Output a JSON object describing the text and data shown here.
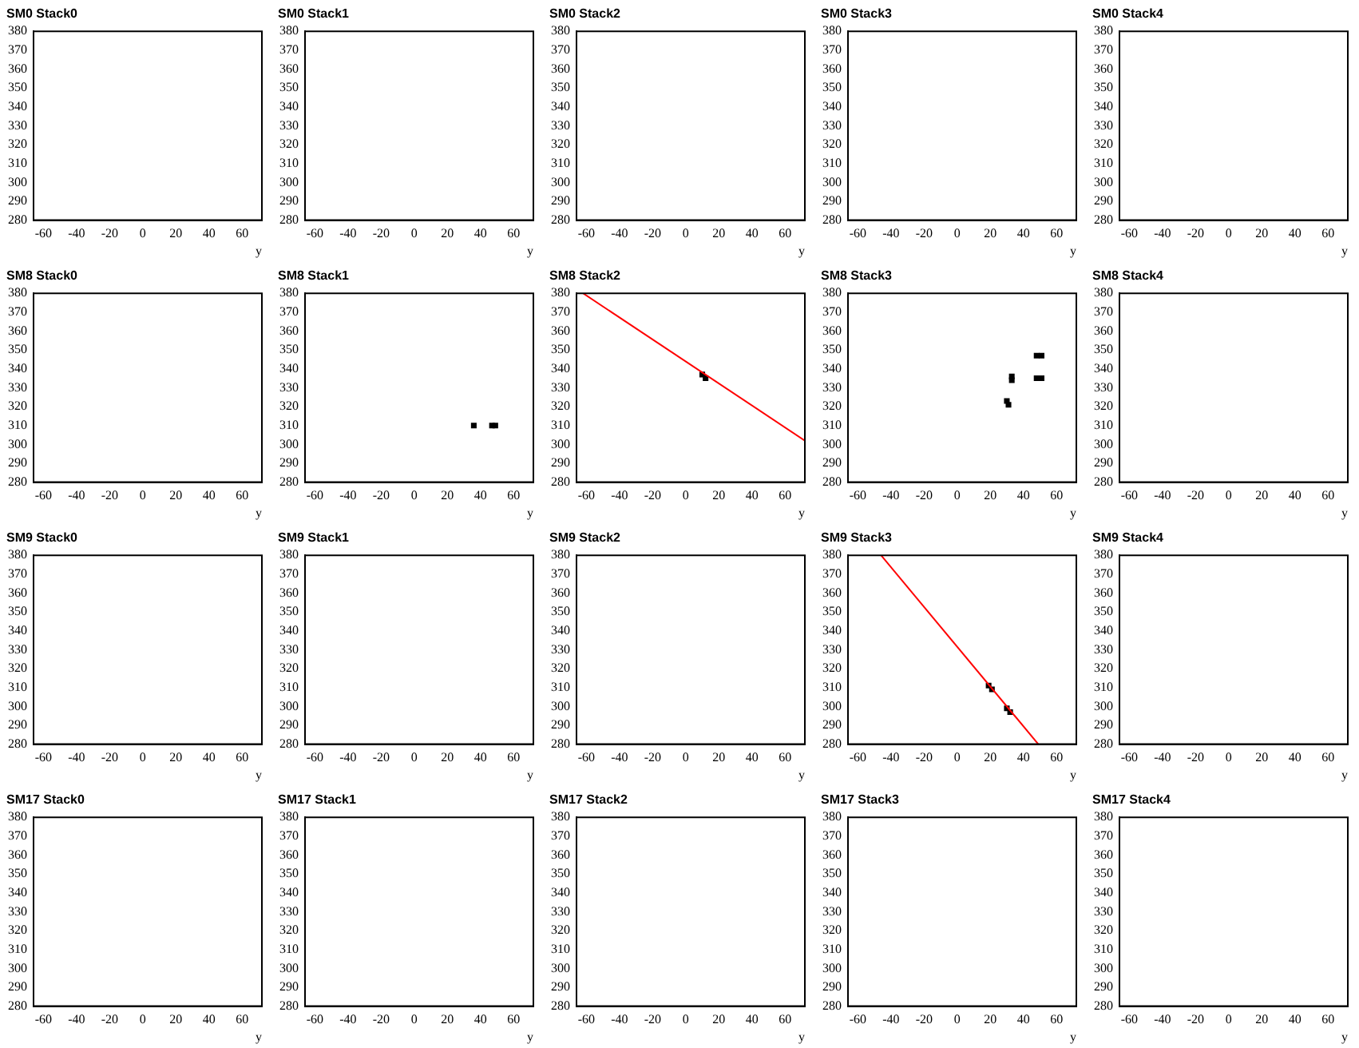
{
  "chart_data": [
    {
      "type": "scatter",
      "title": "SM0 Stack0",
      "xlabel": "y",
      "xlim": [
        -66,
        72
      ],
      "xticks": [
        -60,
        -40,
        -20,
        0,
        20,
        40,
        60
      ],
      "ylim": [
        280,
        380
      ],
      "yticks": [
        280,
        290,
        300,
        310,
        320,
        330,
        340,
        350,
        360,
        370,
        380
      ]
    },
    {
      "type": "scatter",
      "title": "SM0 Stack1",
      "xlabel": "y",
      "xlim": [
        -66,
        72
      ],
      "xticks": [
        -60,
        -40,
        -20,
        0,
        20,
        40,
        60
      ],
      "ylim": [
        280,
        380
      ],
      "yticks": [
        280,
        290,
        300,
        310,
        320,
        330,
        340,
        350,
        360,
        370,
        380
      ]
    },
    {
      "type": "scatter",
      "title": "SM0 Stack2",
      "xlabel": "y",
      "xlim": [
        -66,
        72
      ],
      "xticks": [
        -60,
        -40,
        -20,
        0,
        20,
        40,
        60
      ],
      "ylim": [
        280,
        380
      ],
      "yticks": [
        280,
        290,
        300,
        310,
        320,
        330,
        340,
        350,
        360,
        370,
        380
      ]
    },
    {
      "type": "scatter",
      "title": "SM0 Stack3",
      "xlabel": "y",
      "xlim": [
        -66,
        72
      ],
      "xticks": [
        -60,
        -40,
        -20,
        0,
        20,
        40,
        60
      ],
      "ylim": [
        280,
        380
      ],
      "yticks": [
        280,
        290,
        300,
        310,
        320,
        330,
        340,
        350,
        360,
        370,
        380
      ]
    },
    {
      "type": "scatter",
      "title": "SM0 Stack4",
      "xlabel": "y",
      "xlim": [
        -66,
        72
      ],
      "xticks": [
        -60,
        -40,
        -20,
        0,
        20,
        40,
        60
      ],
      "ylim": [
        280,
        380
      ],
      "yticks": [
        280,
        290,
        300,
        310,
        320,
        330,
        340,
        350,
        360,
        370,
        380
      ]
    },
    {
      "type": "scatter",
      "title": "SM8 Stack0",
      "xlabel": "y",
      "xlim": [
        -66,
        72
      ],
      "xticks": [
        -60,
        -40,
        -20,
        0,
        20,
        40,
        60
      ],
      "ylim": [
        280,
        380
      ],
      "yticks": [
        280,
        290,
        300,
        310,
        320,
        330,
        340,
        350,
        360,
        370,
        380
      ]
    },
    {
      "type": "scatter",
      "title": "SM8 Stack1",
      "xlabel": "y",
      "xlim": [
        -66,
        72
      ],
      "xticks": [
        -60,
        -40,
        -20,
        0,
        20,
        40,
        60
      ],
      "ylim": [
        280,
        380
      ],
      "yticks": [
        280,
        290,
        300,
        310,
        320,
        330,
        340,
        350,
        360,
        370,
        380
      ],
      "marker": "square",
      "series": [
        {
          "color": "#000000",
          "x": [
            36,
            47,
            49
          ],
          "values": [
            310,
            310,
            310
          ]
        }
      ]
    },
    {
      "type": "scatter",
      "title": "SM8 Stack2",
      "xlabel": "y",
      "xlim": [
        -66,
        72
      ],
      "xticks": [
        -60,
        -40,
        -20,
        0,
        20,
        40,
        60
      ],
      "ylim": [
        280,
        380
      ],
      "yticks": [
        280,
        290,
        300,
        310,
        320,
        330,
        340,
        350,
        360,
        370,
        380
      ],
      "series": [
        {
          "type": "line",
          "marker": "none",
          "color": "#ff0000",
          "x": [
            -62,
            72
          ],
          "values": [
            380,
            302
          ]
        },
        {
          "marker": "square",
          "color": "#000000",
          "x": [
            10,
            12
          ],
          "values": [
            337,
            335
          ]
        }
      ]
    },
    {
      "type": "scatter",
      "title": "SM8 Stack3",
      "xlabel": "y",
      "xlim": [
        -66,
        72
      ],
      "xticks": [
        -60,
        -40,
        -20,
        0,
        20,
        40,
        60
      ],
      "ylim": [
        280,
        380
      ],
      "yticks": [
        280,
        290,
        300,
        310,
        320,
        330,
        340,
        350,
        360,
        370,
        380
      ],
      "marker": "square",
      "series": [
        {
          "color": "#000000",
          "x": [
            48,
            51,
            48,
            51,
            33,
            33,
            30,
            31
          ],
          "values": [
            347,
            347,
            335,
            335,
            336,
            334,
            323,
            321
          ]
        }
      ]
    },
    {
      "type": "scatter",
      "title": "SM8 Stack4",
      "xlabel": "y",
      "xlim": [
        -66,
        72
      ],
      "xticks": [
        -60,
        -40,
        -20,
        0,
        20,
        40,
        60
      ],
      "ylim": [
        280,
        380
      ],
      "yticks": [
        280,
        290,
        300,
        310,
        320,
        330,
        340,
        350,
        360,
        370,
        380
      ]
    },
    {
      "type": "scatter",
      "title": "SM9 Stack0",
      "xlabel": "y",
      "xlim": [
        -66,
        72
      ],
      "xticks": [
        -60,
        -40,
        -20,
        0,
        20,
        40,
        60
      ],
      "ylim": [
        280,
        380
      ],
      "yticks": [
        280,
        290,
        300,
        310,
        320,
        330,
        340,
        350,
        360,
        370,
        380
      ]
    },
    {
      "type": "scatter",
      "title": "SM9 Stack1",
      "xlabel": "y",
      "xlim": [
        -66,
        72
      ],
      "xticks": [
        -60,
        -40,
        -20,
        0,
        20,
        40,
        60
      ],
      "ylim": [
        280,
        380
      ],
      "yticks": [
        280,
        290,
        300,
        310,
        320,
        330,
        340,
        350,
        360,
        370,
        380
      ]
    },
    {
      "type": "scatter",
      "title": "SM9 Stack2",
      "xlabel": "y",
      "xlim": [
        -66,
        72
      ],
      "xticks": [
        -60,
        -40,
        -20,
        0,
        20,
        40,
        60
      ],
      "ylim": [
        280,
        380
      ],
      "yticks": [
        280,
        290,
        300,
        310,
        320,
        330,
        340,
        350,
        360,
        370,
        380
      ]
    },
    {
      "type": "scatter",
      "title": "SM9 Stack3",
      "xlabel": "y",
      "xlim": [
        -66,
        72
      ],
      "xticks": [
        -60,
        -40,
        -20,
        0,
        20,
        40,
        60
      ],
      "ylim": [
        280,
        380
      ],
      "yticks": [
        280,
        290,
        300,
        310,
        320,
        330,
        340,
        350,
        360,
        370,
        380
      ],
      "series": [
        {
          "type": "line",
          "marker": "none",
          "color": "#ff0000",
          "x": [
            -46,
            49
          ],
          "values": [
            380,
            280
          ]
        },
        {
          "marker": "square",
          "color": "#000000",
          "x": [
            19,
            21,
            30,
            32
          ],
          "values": [
            311,
            309,
            299,
            297
          ]
        }
      ]
    },
    {
      "type": "scatter",
      "title": "SM9 Stack4",
      "xlabel": "y",
      "xlim": [
        -66,
        72
      ],
      "xticks": [
        -60,
        -40,
        -20,
        0,
        20,
        40,
        60
      ],
      "ylim": [
        280,
        380
      ],
      "yticks": [
        280,
        290,
        300,
        310,
        320,
        330,
        340,
        350,
        360,
        370,
        380
      ]
    },
    {
      "type": "scatter",
      "title": "SM17 Stack0",
      "xlabel": "y",
      "xlim": [
        -66,
        72
      ],
      "xticks": [
        -60,
        -40,
        -20,
        0,
        20,
        40,
        60
      ],
      "ylim": [
        280,
        380
      ],
      "yticks": [
        280,
        290,
        300,
        310,
        320,
        330,
        340,
        350,
        360,
        370,
        380
      ]
    },
    {
      "type": "scatter",
      "title": "SM17 Stack1",
      "xlabel": "y",
      "xlim": [
        -66,
        72
      ],
      "xticks": [
        -60,
        -40,
        -20,
        0,
        20,
        40,
        60
      ],
      "ylim": [
        280,
        380
      ],
      "yticks": [
        280,
        290,
        300,
        310,
        320,
        330,
        340,
        350,
        360,
        370,
        380
      ]
    },
    {
      "type": "scatter",
      "title": "SM17 Stack2",
      "xlabel": "y",
      "xlim": [
        -66,
        72
      ],
      "xticks": [
        -60,
        -40,
        -20,
        0,
        20,
        40,
        60
      ],
      "ylim": [
        280,
        380
      ],
      "yticks": [
        280,
        290,
        300,
        310,
        320,
        330,
        340,
        350,
        360,
        370,
        380
      ]
    },
    {
      "type": "scatter",
      "title": "SM17 Stack3",
      "xlabel": "y",
      "xlim": [
        -66,
        72
      ],
      "xticks": [
        -60,
        -40,
        -20,
        0,
        20,
        40,
        60
      ],
      "ylim": [
        280,
        380
      ],
      "yticks": [
        280,
        290,
        300,
        310,
        320,
        330,
        340,
        350,
        360,
        370,
        380
      ]
    },
    {
      "type": "scatter",
      "title": "SM17 Stack4",
      "xlabel": "y",
      "xlim": [
        -66,
        72
      ],
      "xticks": [
        -60,
        -40,
        -20,
        0,
        20,
        40,
        60
      ],
      "ylim": [
        280,
        380
      ],
      "yticks": [
        280,
        290,
        300,
        310,
        320,
        330,
        340,
        350,
        360,
        370,
        380
      ]
    }
  ]
}
